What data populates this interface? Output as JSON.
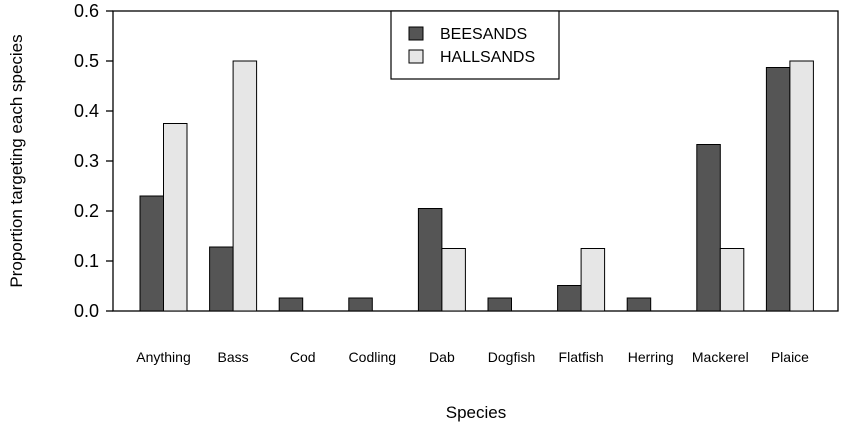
{
  "chart_data": {
    "type": "bar",
    "categories": [
      "Anything",
      "Bass",
      "Cod",
      "Codling",
      "Dab",
      "Dogfish",
      "Flatfish",
      "Herring",
      "Mackerel",
      "Plaice"
    ],
    "series": [
      {
        "name": "BEESANDS",
        "color": "#555555",
        "values": [
          0.23,
          0.128,
          0.026,
          0.026,
          0.205,
          0.026,
          0.051,
          0.026,
          0.333,
          0.487
        ]
      },
      {
        "name": "HALLSANDS",
        "color": "#e6e6e6",
        "values": [
          0.375,
          0.5,
          0.0,
          0.0,
          0.125,
          0.0,
          0.125,
          0.0,
          0.125,
          0.5
        ]
      }
    ],
    "xlabel": "Species",
    "ylabel": "Proportion targeting each species",
    "ylim": [
      0,
      0.6
    ],
    "yticks": [
      "0.0",
      "0.1",
      "0.2",
      "0.3",
      "0.4",
      "0.5",
      "0.6"
    ],
    "legend_position": "top-center",
    "grid": false
  }
}
